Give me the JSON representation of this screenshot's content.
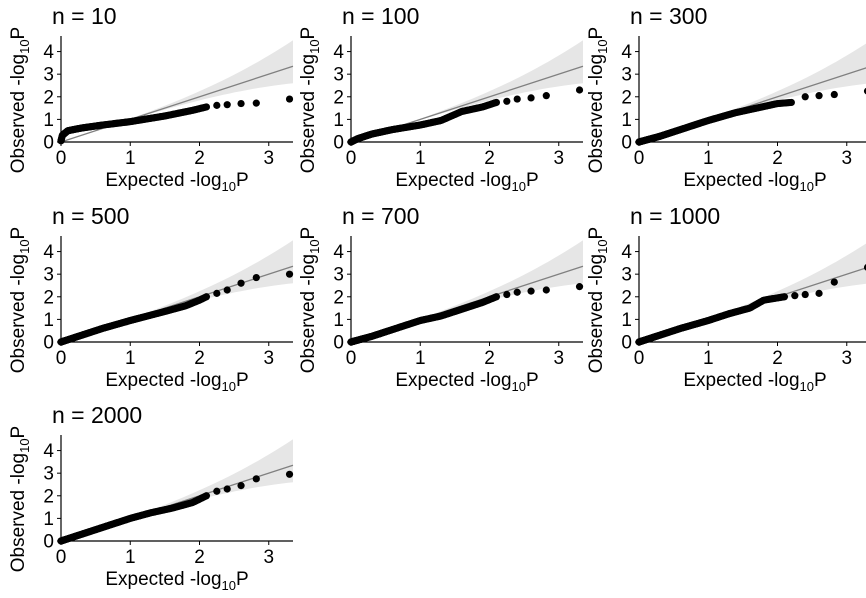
{
  "chart_data": {
    "type": "scatter",
    "x_axis_label": {
      "text": "Expected -log",
      "subscript": "10",
      "suffix": "P"
    },
    "y_axis_label": {
      "text": "Observed -log",
      "subscript": "10",
      "suffix": "P"
    },
    "xlim": [
      0,
      3.35
    ],
    "ylim": [
      0,
      4.6
    ],
    "x_ticks": [
      0,
      1,
      2,
      3
    ],
    "y_ticks": [
      0,
      1,
      2,
      3,
      4
    ],
    "x_tick_labels": [
      "0",
      "1",
      "2",
      "3"
    ],
    "y_tick_labels": [
      "0",
      "1",
      "2",
      "3",
      "4"
    ],
    "grid": false,
    "reference_line": {
      "type": "y = x",
      "color": "#808080"
    },
    "confidence_band": {
      "color": "#e6e6e6",
      "upper_at_max_x": 4.5,
      "lower_at_max_x": 2.6
    },
    "panels": [
      {
        "title": "n = 10",
        "curve": [
          [
            0,
            0.05
          ],
          [
            0.02,
            0.3
          ],
          [
            0.1,
            0.5
          ],
          [
            0.3,
            0.62
          ],
          [
            0.6,
            0.75
          ],
          [
            1.0,
            0.9
          ],
          [
            1.5,
            1.15
          ],
          [
            1.9,
            1.4
          ],
          [
            2.1,
            1.55
          ]
        ],
        "tail": [
          [
            2.25,
            1.62
          ],
          [
            2.4,
            1.65
          ],
          [
            2.6,
            1.7
          ],
          [
            2.82,
            1.72
          ],
          [
            3.3,
            1.9
          ]
        ]
      },
      {
        "title": "n = 100",
        "curve": [
          [
            0,
            0.0
          ],
          [
            0.1,
            0.15
          ],
          [
            0.3,
            0.35
          ],
          [
            0.6,
            0.55
          ],
          [
            1.0,
            0.75
          ],
          [
            1.3,
            0.95
          ],
          [
            1.6,
            1.35
          ],
          [
            1.9,
            1.55
          ],
          [
            2.1,
            1.75
          ]
        ],
        "tail": [
          [
            2.25,
            1.8
          ],
          [
            2.4,
            1.9
          ],
          [
            2.6,
            1.95
          ],
          [
            2.82,
            2.05
          ],
          [
            3.3,
            2.3
          ]
        ]
      },
      {
        "title": "n = 300",
        "curve": [
          [
            0,
            0.0
          ],
          [
            0.3,
            0.25
          ],
          [
            0.6,
            0.55
          ],
          [
            1.0,
            0.95
          ],
          [
            1.4,
            1.3
          ],
          [
            1.7,
            1.5
          ],
          [
            2.0,
            1.7
          ],
          [
            2.2,
            1.75
          ]
        ],
        "tail": [
          [
            2.4,
            2.0
          ],
          [
            2.6,
            2.05
          ],
          [
            2.82,
            2.1
          ],
          [
            3.3,
            2.25
          ]
        ]
      },
      {
        "title": "n = 500",
        "curve": [
          [
            0,
            0.0
          ],
          [
            0.3,
            0.3
          ],
          [
            0.6,
            0.6
          ],
          [
            1.0,
            0.95
          ],
          [
            1.5,
            1.35
          ],
          [
            1.8,
            1.6
          ],
          [
            2.0,
            1.85
          ],
          [
            2.1,
            2.0
          ]
        ],
        "tail": [
          [
            2.25,
            2.15
          ],
          [
            2.4,
            2.3
          ],
          [
            2.6,
            2.6
          ],
          [
            2.82,
            2.85
          ],
          [
            3.3,
            3.0
          ]
        ]
      },
      {
        "title": "n = 700",
        "curve": [
          [
            0,
            0.0
          ],
          [
            0.3,
            0.25
          ],
          [
            0.6,
            0.55
          ],
          [
            1.0,
            0.95
          ],
          [
            1.3,
            1.15
          ],
          [
            1.6,
            1.45
          ],
          [
            1.9,
            1.75
          ],
          [
            2.1,
            2.0
          ]
        ],
        "tail": [
          [
            2.25,
            2.1
          ],
          [
            2.4,
            2.2
          ],
          [
            2.6,
            2.25
          ],
          [
            2.82,
            2.3
          ],
          [
            3.3,
            2.45
          ]
        ]
      },
      {
        "title": "n = 1000",
        "curve": [
          [
            0,
            0.0
          ],
          [
            0.3,
            0.3
          ],
          [
            0.6,
            0.6
          ],
          [
            1.0,
            0.95
          ],
          [
            1.3,
            1.25
          ],
          [
            1.6,
            1.5
          ],
          [
            1.8,
            1.85
          ],
          [
            2.1,
            2.0
          ]
        ],
        "tail": [
          [
            2.25,
            2.05
          ],
          [
            2.4,
            2.1
          ],
          [
            2.6,
            2.15
          ],
          [
            2.82,
            2.65
          ],
          [
            3.3,
            3.3
          ]
        ]
      },
      {
        "title": "n = 2000",
        "curve": [
          [
            0,
            0.0
          ],
          [
            0.3,
            0.3
          ],
          [
            0.6,
            0.6
          ],
          [
            1.0,
            1.0
          ],
          [
            1.3,
            1.25
          ],
          [
            1.6,
            1.45
          ],
          [
            1.9,
            1.7
          ],
          [
            2.1,
            2.0
          ]
        ],
        "tail": [
          [
            2.25,
            2.2
          ],
          [
            2.4,
            2.3
          ],
          [
            2.6,
            2.45
          ],
          [
            2.82,
            2.75
          ],
          [
            3.3,
            2.95
          ]
        ]
      }
    ]
  }
}
